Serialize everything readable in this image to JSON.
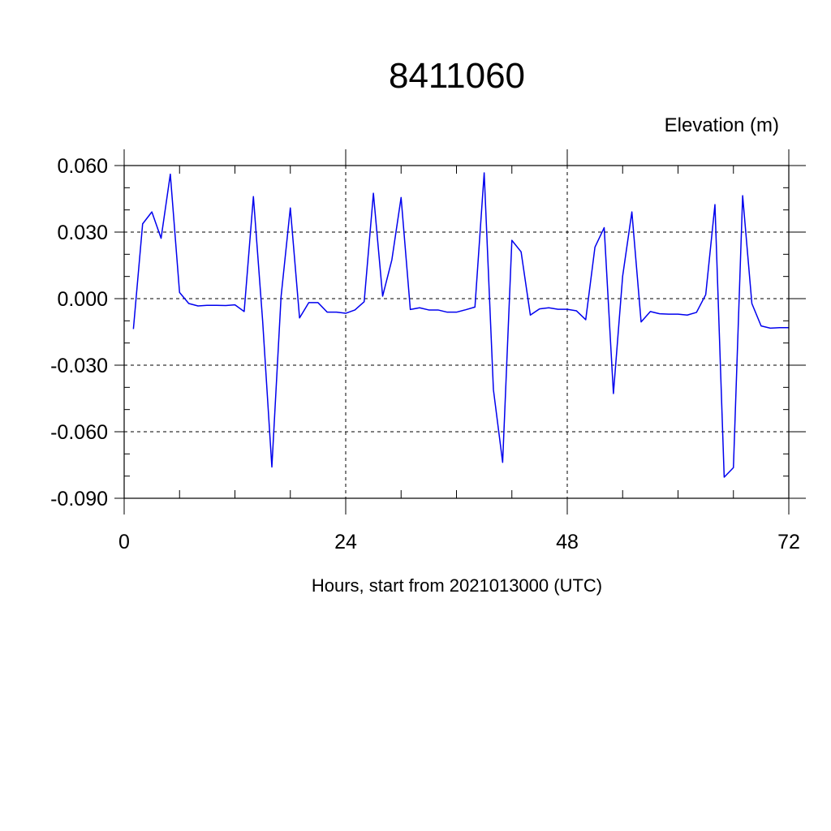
{
  "chart_data": {
    "type": "line",
    "title": "8411060",
    "ylabel": "Elevation (m)",
    "xlabel": "Hours, start from 2021013000 (UTC)",
    "xlim": [
      0,
      72
    ],
    "ylim": [
      -0.09,
      0.06
    ],
    "x_ticks": [
      0,
      24,
      48,
      72
    ],
    "x_tick_labels": [
      "0",
      "24",
      "48",
      "72"
    ],
    "y_ticks": [
      0.06,
      0.03,
      0.0,
      -0.03,
      -0.06,
      -0.09
    ],
    "y_tick_labels": [
      "0.060",
      "0.030",
      "0.000",
      "-0.030",
      "-0.060",
      "-0.090"
    ],
    "grid": true,
    "series": [
      {
        "color": "#0000ee",
        "x": [
          1,
          2,
          3,
          4,
          5,
          6,
          7,
          8,
          9,
          10,
          11,
          12,
          13,
          14,
          15,
          16,
          17,
          18,
          19,
          20,
          21,
          22,
          23,
          24,
          25,
          26,
          27,
          28,
          29,
          30,
          31,
          32,
          33,
          34,
          35,
          36,
          37,
          38,
          39,
          40,
          41,
          42,
          43,
          44,
          45,
          46,
          47,
          48,
          49,
          50,
          51,
          52,
          53,
          54,
          55,
          56,
          57,
          58,
          59,
          60,
          61,
          62,
          63,
          64,
          65,
          66,
          67,
          68,
          69,
          70,
          71,
          72
        ],
        "y": [
          -0.0137,
          0.0337,
          0.0391,
          0.0272,
          0.0561,
          0.0028,
          -0.0022,
          -0.0033,
          -0.003,
          -0.003,
          -0.0031,
          -0.0028,
          -0.0058,
          0.046,
          -0.01,
          -0.0759,
          0.001,
          0.0409,
          -0.0087,
          -0.0018,
          -0.0018,
          -0.0061,
          -0.0061,
          -0.0066,
          -0.0051,
          -0.0014,
          0.0475,
          0.0011,
          0.0175,
          0.0456,
          -0.0049,
          -0.0041,
          -0.0051,
          -0.0051,
          -0.0061,
          -0.0061,
          -0.005,
          -0.0038,
          0.0567,
          -0.041,
          -0.0738,
          0.0263,
          0.0211,
          -0.0074,
          -0.0046,
          -0.0041,
          -0.0048,
          -0.0048,
          -0.0055,
          -0.0095,
          0.0232,
          0.032,
          -0.0428,
          0.0101,
          0.0391,
          -0.0105,
          -0.0058,
          -0.0068,
          -0.007,
          -0.007,
          -0.0074,
          -0.0062,
          0.0018,
          0.0424,
          -0.0805,
          -0.0762,
          0.0464,
          -0.0022,
          -0.0123,
          -0.0133,
          -0.0131,
          -0.0131
        ]
      }
    ]
  }
}
